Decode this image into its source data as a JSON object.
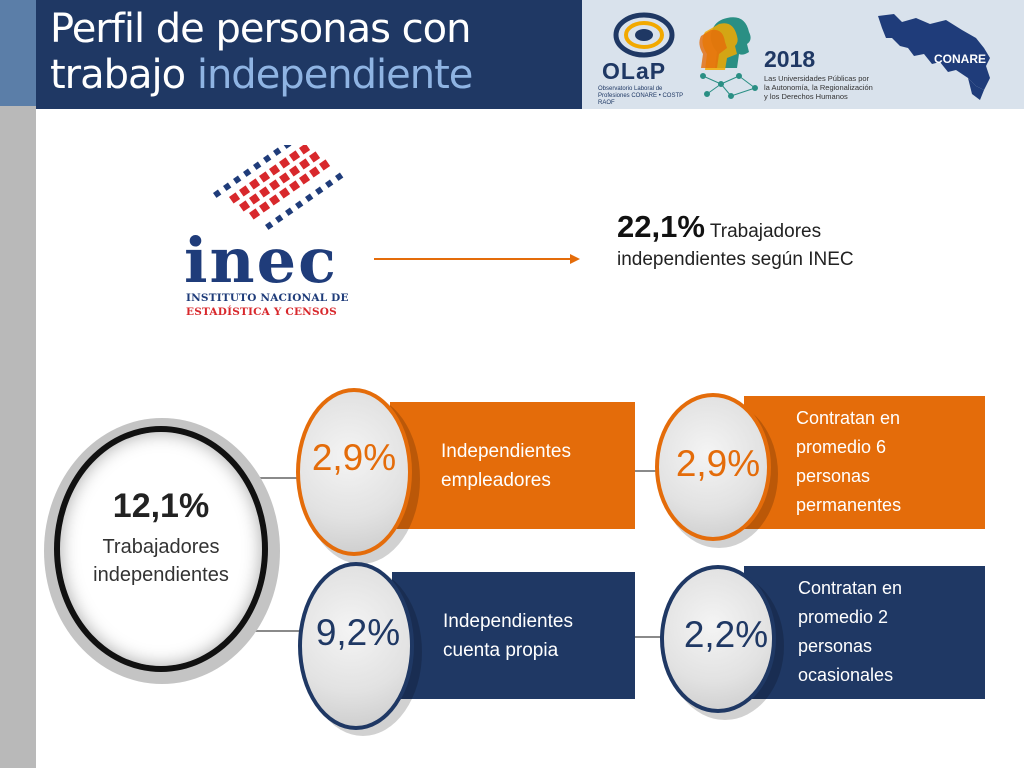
{
  "header": {
    "title_line1": "Perfil de personas con",
    "title_line2_normal": "trabajo ",
    "title_line2_highlight": "independiente"
  },
  "logos": {
    "olap_name": "OLaP",
    "olap_subtitle": "Observatorio Laboral de Profesiones CONARE • COSTP RAOF",
    "event_year": "2018",
    "event_subtitle": "Las Universidades Públicas por la Autonomía, la Regionalización y los Derechos Humanos",
    "conare": "CONARE",
    "inec_name": "inec",
    "inec_sub1": "INSTITUTO NACIONAL DE",
    "inec_sub2": "ESTADÍSTICA Y CENSOS"
  },
  "inec_stat": {
    "value": "22,1%",
    "label_part1": " Trabajadores",
    "label_part2": "independientes según INEC"
  },
  "main_circle": {
    "value": "12,1%",
    "label_line1": "Trabajadores",
    "label_line2": "independientes"
  },
  "rows": [
    {
      "value": "2,9%",
      "label_line1": "Independientes",
      "label_line2": "empleadores",
      "detail_value": "2,9%",
      "detail_lines": [
        "Contratan en",
        "promedio 6",
        "personas",
        "permanentes"
      ]
    },
    {
      "value": "9,2%",
      "label_line1": "Independientes",
      "label_line2": "cuenta propia",
      "detail_value": "2,2%",
      "detail_lines": [
        "Contratan en",
        "promedio 2",
        "personas",
        "ocasionales"
      ]
    }
  ],
  "colors": {
    "navy": "#1f3864",
    "orange": "#e46c0a",
    "inec_blue": "#1f3c7a",
    "inec_red": "#d8282c"
  }
}
